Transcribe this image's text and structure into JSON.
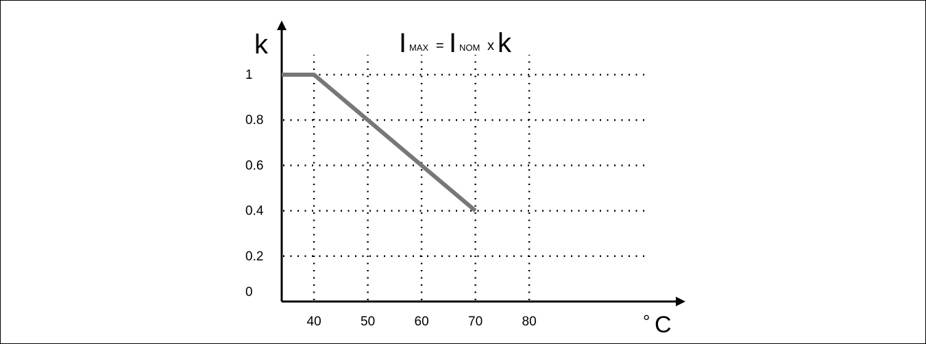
{
  "chart_data": {
    "type": "line",
    "title": {
      "i1": "I",
      "sub1": "MAX",
      "eq": "=",
      "i2": "I",
      "sub2": "NOM",
      "op": "x",
      "k": "k"
    },
    "ylabel": "k",
    "xunit": {
      "degree": "°",
      "letter": "C"
    },
    "x_ticks": [
      "40",
      "50",
      "60",
      "70",
      "80"
    ],
    "x_tick_values": [
      40,
      50,
      60,
      70,
      80
    ],
    "y_ticks": [
      "0",
      "0.2",
      "0.4",
      "0.6",
      "0.8",
      "1"
    ],
    "y_tick_values": [
      0,
      0.2,
      0.4,
      0.6,
      0.8,
      1
    ],
    "xlim": [
      34,
      83
    ],
    "ylim": [
      0,
      1.05
    ],
    "grid": true,
    "series": [
      {
        "x": [
          34,
          40,
          70
        ],
        "y": [
          1,
          1,
          0.4
        ]
      }
    ],
    "colors": {
      "line": "#777777",
      "axis": "#000000",
      "grid": "#000000"
    }
  }
}
